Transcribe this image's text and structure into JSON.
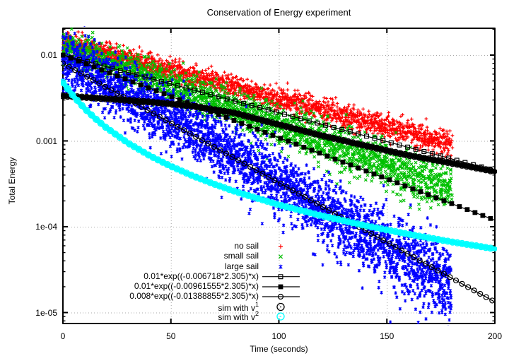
{
  "title": "Conservation of Energy experiment",
  "axes": {
    "x": {
      "label": "Time (seconds)",
      "min": 0,
      "max": 200,
      "ticks": [
        {
          "value": 0,
          "label": "0"
        },
        {
          "value": 50,
          "label": "50"
        },
        {
          "value": 100,
          "label": "100"
        },
        {
          "value": 150,
          "label": "150"
        },
        {
          "value": 200,
          "label": "200"
        }
      ]
    },
    "y": {
      "label": "Total Energy",
      "scale": "log",
      "min": 7.5e-06,
      "max": 0.0205,
      "ticks": [
        {
          "value": 0.01,
          "label": "0.01"
        },
        {
          "value": 0.001,
          "label": "0.001"
        },
        {
          "value": 0.0001,
          "label": "1e-04"
        },
        {
          "value": 1e-05,
          "label": "1e-05"
        }
      ]
    }
  },
  "grid": {
    "visible": true,
    "style": "dotted",
    "color": "#a8a8a8"
  },
  "legend": {
    "position": "inside-bottom-right",
    "frame": false
  },
  "chart_data": {
    "type": "scatter",
    "x_unit": "seconds",
    "series": [
      {
        "name": "no-sail-experiment",
        "label": "no sail",
        "sup": "",
        "kind": "cloud",
        "marker": "plus",
        "color": "#ff0000",
        "t_range": [
          0,
          180
        ],
        "points_count": 2000,
        "noise_dex": 0.055,
        "noise_growth_dex": 0.02,
        "trend": [
          [
            0,
            0.0145
          ],
          [
            180,
            0.000905
          ]
        ]
      },
      {
        "name": "small-sail-experiment",
        "label": "small sail",
        "sup": "",
        "kind": "cloud",
        "marker": "cross",
        "color": "#00c000",
        "t_range": [
          0,
          180
        ],
        "points_count": 2200,
        "noise_dex": 0.1,
        "noise_growth_dex": 0.03,
        "trend": [
          [
            0,
            0.0125
          ],
          [
            180,
            0.000278
          ]
        ]
      },
      {
        "name": "large-sail-experiment",
        "label": "large sail",
        "sup": "",
        "kind": "cloud",
        "marker": "star",
        "color": "#0000ff",
        "t_range": [
          0,
          180
        ],
        "points_count": 3200,
        "noise_dex": 0.16,
        "noise_growth_dex": 0.06,
        "trend": [
          [
            0,
            0.0095
          ],
          [
            30,
            0.0034
          ],
          [
            60,
            0.0013
          ],
          [
            90,
            0.00046
          ],
          [
            120,
            0.000155
          ],
          [
            150,
            5.5e-05
          ],
          [
            180,
            2.1e-05
          ]
        ]
      },
      {
        "name": "fit-no-sail",
        "label": "0.01*exp((-0.006718*2.305)*x)",
        "sup": "",
        "kind": "fit-line",
        "marker": "open-square",
        "color": "#000000",
        "t_range": [
          0,
          200
        ],
        "marker_step": 3.8,
        "trend": [
          [
            0,
            0.01
          ],
          [
            200,
            0.000453
          ]
        ]
      },
      {
        "name": "fit-small-sail",
        "label": "0.01*exp((-0.00961555*2.305)*x)",
        "sup": "",
        "kind": "fit-line",
        "marker": "filled-square",
        "color": "#000000",
        "t_range": [
          0,
          200
        ],
        "marker_step": 3.6,
        "trend": [
          [
            0,
            0.01
          ],
          [
            200,
            0.0001194
          ]
        ]
      },
      {
        "name": "fit-large-sail",
        "label": "0.008*exp((-0.01388855*2.305)*x)",
        "sup": "",
        "kind": "fit-line",
        "marker": "small-circle",
        "color": "#000000",
        "t_range": [
          0,
          200
        ],
        "marker_step": 2.8,
        "trend": [
          [
            0,
            0.008
          ],
          [
            200,
            1.33e-05
          ]
        ]
      },
      {
        "name": "sim-linear-drag",
        "label": "sim with v",
        "sup": "1",
        "kind": "band",
        "marker": "big-circle",
        "color": "#000000",
        "t_range": [
          0,
          200
        ],
        "marker_step": 2.2,
        "trend": [
          [
            0,
            0.00335
          ],
          [
            20,
            0.0031
          ],
          [
            40,
            0.00285
          ],
          [
            60,
            0.00255
          ],
          [
            80,
            0.0021
          ],
          [
            100,
            0.00155
          ],
          [
            120,
            0.00115
          ],
          [
            140,
            0.00088
          ],
          [
            160,
            0.00068
          ],
          [
            180,
            0.00055
          ],
          [
            200,
            0.00044
          ]
        ]
      },
      {
        "name": "sim-quadratic-drag",
        "label": "sim with v",
        "sup": "2",
        "kind": "band",
        "marker": "big-circle",
        "color": "#00ffff",
        "t_range": [
          0,
          200
        ],
        "marker_step": 2.2,
        "trend": [
          [
            0,
            0.0048
          ],
          [
            5,
            0.00329
          ],
          [
            10,
            0.00239
          ],
          [
            15,
            0.00182
          ],
          [
            20,
            0.00143
          ],
          [
            30,
            0.00095
          ],
          [
            40,
            0.000676
          ],
          [
            50,
            0.000506
          ],
          [
            60,
            0.000393
          ],
          [
            70,
            0.000314
          ],
          [
            80,
            0.000256
          ],
          [
            100,
            0.00018
          ],
          [
            120,
            0.000134
          ],
          [
            140,
            0.000103
          ],
          [
            160,
            8.19e-05
          ],
          [
            180,
            6.66e-05
          ],
          [
            200,
            5.52e-05
          ]
        ]
      }
    ]
  }
}
